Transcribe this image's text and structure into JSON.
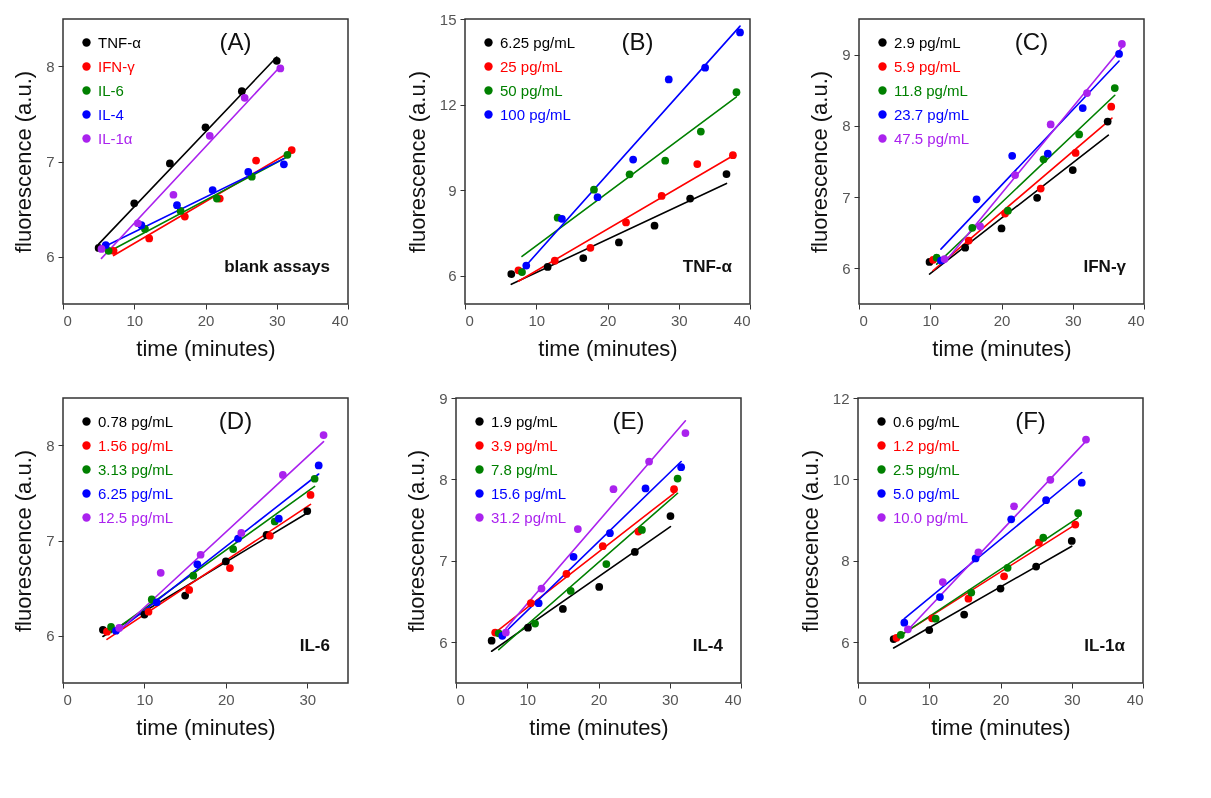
{
  "chart_data": [
    {
      "type": "scatter",
      "title": "(A)",
      "annotations": [
        "blank assays"
      ],
      "xlabel": "time (minutes)",
      "ylabel": "fluorescence (a.u.)",
      "xlim": [
        0,
        40
      ],
      "xticks": [
        0,
        10,
        20,
        30,
        40
      ],
      "ylim": [
        5.5,
        8.5
      ],
      "yticks": [
        6,
        7,
        8
      ],
      "legend": "top left",
      "series": [
        {
          "name": "TNF-α",
          "color": "#000000",
          "marker": "circle",
          "x": [
            5,
            10,
            15,
            20,
            25.1,
            30
          ],
          "values": [
            6.09,
            6.56,
            6.98,
            7.36,
            7.74,
            8.06
          ]
        },
        {
          "name": "IFN-γ",
          "color": "#ff0000",
          "marker": "circle",
          "x": [
            7.1,
            12.1,
            17.1,
            22,
            27.1,
            32.1
          ],
          "values": [
            6.06,
            6.19,
            6.42,
            6.61,
            7.01,
            7.12
          ]
        },
        {
          "name": "IL-6",
          "color": "#008000",
          "marker": "circle",
          "x": [
            6.4,
            11.5,
            16.5,
            21.6,
            26.5,
            31.5
          ],
          "values": [
            6.06,
            6.29,
            6.48,
            6.61,
            6.84,
            7.07
          ]
        },
        {
          "name": "IL-4",
          "color": "#0000ff",
          "marker": "circle",
          "x": [
            6,
            11,
            16,
            21,
            26,
            31
          ],
          "values": [
            6.12,
            6.33,
            6.54,
            6.7,
            6.89,
            6.97
          ]
        },
        {
          "name": "IL-1α",
          "color": "#aa22ee",
          "marker": "circle",
          "x": [
            5.4,
            10.5,
            15.5,
            20.6,
            25.5,
            30.5
          ],
          "values": [
            6.08,
            6.35,
            6.65,
            7.27,
            7.67,
            7.98
          ]
        },
        {
          "type": "line",
          "color": "#000000",
          "x": [
            5,
            30
          ],
          "values": [
            6.13,
            8.1
          ]
        },
        {
          "type": "line",
          "color": "#ff0000",
          "x": [
            7.1,
            32.1
          ],
          "values": [
            6.01,
            7.11
          ]
        },
        {
          "type": "line",
          "color": "#008000",
          "x": [
            6.4,
            31.5
          ],
          "values": [
            6.05,
            7.05
          ]
        },
        {
          "type": "line",
          "color": "#0000ff",
          "x": [
            6,
            31
          ],
          "values": [
            6.11,
            7.03
          ]
        },
        {
          "type": "line",
          "color": "#aa22ee",
          "x": [
            5.4,
            30.5
          ],
          "values": [
            5.98,
            8.0
          ]
        }
      ]
    },
    {
      "type": "scatter",
      "title": "(B)",
      "annotations": [
        "TNF-α"
      ],
      "xlabel": "time (minutes)",
      "ylabel": "fluorescence (a.u.)",
      "xlim": [
        0,
        40
      ],
      "xticks": [
        0,
        10,
        20,
        30,
        40
      ],
      "ylim": [
        5,
        15
      ],
      "yticks": [
        6,
        9,
        12,
        15
      ],
      "legend": "top left",
      "series": [
        {
          "name": "6.25 pg/mL",
          "color": "#000000",
          "marker": "circle",
          "x": [
            6.5,
            11.6,
            16.6,
            21.6,
            26.6,
            31.6,
            36.7
          ],
          "values": [
            6.05,
            6.3,
            6.61,
            7.16,
            7.75,
            8.7,
            9.56
          ]
        },
        {
          "name": "25 pg/mL",
          "color": "#ff0000",
          "marker": "circle",
          "x": [
            7.5,
            12.6,
            17.6,
            22.6,
            27.6,
            32.6,
            37.6
          ],
          "values": [
            6.18,
            6.52,
            6.97,
            7.86,
            8.79,
            9.91,
            10.22
          ]
        },
        {
          "name": "50 pg/mL",
          "color": "#008000",
          "marker": "circle",
          "x": [
            8,
            13,
            18.1,
            23.1,
            28.1,
            33.1,
            38.1
          ],
          "values": [
            6.12,
            8.03,
            9.01,
            9.55,
            10.03,
            11.05,
            12.43
          ]
        },
        {
          "name": "100 pg/mL",
          "color": "#0000ff",
          "marker": "circle",
          "x": [
            8.6,
            13.6,
            18.6,
            23.6,
            28.6,
            33.7,
            38.6
          ],
          "values": [
            6.35,
            7.99,
            8.75,
            10.07,
            12.88,
            13.29,
            14.53
          ]
        },
        {
          "type": "line",
          "color": "#000000",
          "x": [
            6.5,
            36.7
          ],
          "values": [
            5.69,
            9.23
          ]
        },
        {
          "type": "line",
          "color": "#ff0000",
          "x": [
            7.5,
            37.6
          ],
          "values": [
            5.8,
            10.2
          ]
        },
        {
          "type": "line",
          "color": "#008000",
          "x": [
            8,
            38.1
          ],
          "values": [
            6.67,
            12.27
          ]
        },
        {
          "type": "line",
          "color": "#0000ff",
          "x": [
            8.1,
            38.6
          ],
          "values": [
            6.22,
            14.75
          ]
        }
      ]
    },
    {
      "type": "scatter",
      "title": "(C)",
      "annotations": [
        "IFN-γ"
      ],
      "xlabel": "time (minutes)",
      "ylabel": "fluorescence (a.u.)",
      "xlim": [
        0,
        40
      ],
      "xticks": [
        0,
        10,
        20,
        30,
        40
      ],
      "ylim": [
        5.5,
        9.5
      ],
      "yticks": [
        6,
        7,
        8,
        9
      ],
      "legend": "top left",
      "series": [
        {
          "name": "2.9 pg/mL",
          "color": "#000000",
          "marker": "circle",
          "x": [
            9.9,
            14.9,
            20,
            25,
            30,
            34.9
          ],
          "values": [
            6.09,
            6.29,
            6.56,
            6.99,
            7.38,
            8.06
          ]
        },
        {
          "name": "5.9 pg/mL",
          "color": "#ff0000",
          "marker": "circle",
          "x": [
            10.4,
            15.4,
            20.5,
            25.5,
            30.4,
            35.4
          ],
          "values": [
            6.12,
            6.39,
            6.77,
            7.12,
            7.62,
            8.27
          ]
        },
        {
          "name": "11.8 pg/mL",
          "color": "#008000",
          "marker": "circle",
          "x": [
            10.9,
            15.9,
            20.9,
            25.9,
            30.9,
            35.9
          ],
          "values": [
            6.15,
            6.57,
            6.81,
            7.53,
            7.88,
            8.53
          ]
        },
        {
          "name": "23.7 pg/mL",
          "color": "#0000ff",
          "marker": "circle",
          "x": [
            11.5,
            16.5,
            21.5,
            26.5,
            31.4,
            36.5
          ],
          "values": [
            6.11,
            6.97,
            7.58,
            7.61,
            8.25,
            9.01
          ]
        },
        {
          "name": "47.5 pg/mL",
          "color": "#aa22ee",
          "marker": "circle",
          "x": [
            12,
            17,
            21.9,
            26.9,
            32,
            36.9
          ],
          "values": [
            6.13,
            6.59,
            7.31,
            8.02,
            8.46,
            9.15
          ]
        },
        {
          "type": "line",
          "color": "#000000",
          "x": [
            9.9,
            35
          ],
          "values": [
            5.92,
            7.87
          ]
        },
        {
          "type": "line",
          "color": "#ff0000",
          "x": [
            10.4,
            35.5
          ],
          "values": [
            5.97,
            8.11
          ]
        },
        {
          "type": "line",
          "color": "#008000",
          "x": [
            10.9,
            35.9
          ],
          "values": [
            6.06,
            8.43
          ]
        },
        {
          "type": "line",
          "color": "#0000ff",
          "x": [
            11.5,
            36.5
          ],
          "values": [
            6.27,
            8.91
          ]
        },
        {
          "type": "line",
          "color": "#aa22ee",
          "x": [
            12,
            36.9
          ],
          "values": [
            6.08,
            9.1
          ]
        }
      ]
    },
    {
      "type": "scatter",
      "title": "(D)",
      "annotations": [
        "IL-6"
      ],
      "xlabel": "time (minutes)",
      "ylabel": "fluorescence (a.u.)",
      "xlim": [
        0,
        35
      ],
      "xticks": [
        0,
        10,
        20,
        30
      ],
      "ylim": [
        5.5,
        8.5
      ],
      "yticks": [
        6,
        7,
        8
      ],
      "legend": "top left",
      "series": [
        {
          "name": "0.78 pg/mL",
          "color": "#000000",
          "marker": "circle",
          "x": [
            4.9,
            10,
            15,
            20,
            25,
            30
          ],
          "values": [
            6.06,
            6.22,
            6.42,
            6.78,
            7.06,
            7.31
          ]
        },
        {
          "name": "1.56 pg/mL",
          "color": "#ff0000",
          "marker": "circle",
          "x": [
            5.4,
            10.5,
            15.5,
            20.5,
            25.4,
            30.4
          ],
          "values": [
            6.04,
            6.25,
            6.48,
            6.71,
            7.05,
            7.48
          ]
        },
        {
          "name": "3.13 pg/mL",
          "color": "#008000",
          "marker": "circle",
          "x": [
            5.9,
            10.9,
            16,
            20.9,
            26,
            30.9
          ],
          "values": [
            6.09,
            6.38,
            6.63,
            6.91,
            7.2,
            7.65
          ]
        },
        {
          "name": "6.25 pg/mL",
          "color": "#0000ff",
          "marker": "circle",
          "x": [
            6.5,
            11.5,
            16.5,
            21.5,
            26.5,
            31.4
          ],
          "values": [
            6.05,
            6.35,
            6.75,
            7.02,
            7.23,
            7.79
          ]
        },
        {
          "name": "12.5 pg/mL",
          "color": "#aa22ee",
          "marker": "circle",
          "x": [
            6.9,
            12,
            16.9,
            21.9,
            27,
            32
          ],
          "values": [
            6.08,
            6.66,
            6.85,
            7.08,
            7.69,
            8.11
          ]
        },
        {
          "type": "line",
          "color": "#000000",
          "x": [
            4.9,
            30
          ],
          "values": [
            5.99,
            7.29
          ]
        },
        {
          "type": "line",
          "color": "#ff0000",
          "x": [
            5.4,
            30.4
          ],
          "values": [
            5.96,
            7.38
          ]
        },
        {
          "type": "line",
          "color": "#008000",
          "x": [
            5.9,
            30.9
          ],
          "values": [
            6.03,
            7.57
          ]
        },
        {
          "type": "line",
          "color": "#0000ff",
          "x": [
            6.5,
            31.4
          ],
          "values": [
            6.03,
            7.7
          ]
        },
        {
          "type": "line",
          "color": "#aa22ee",
          "x": [
            6.9,
            32
          ],
          "values": [
            6.05,
            8.04
          ]
        }
      ]
    },
    {
      "type": "scatter",
      "title": "(E)",
      "annotations": [
        "IL-4"
      ],
      "xlabel": "time (minutes)",
      "ylabel": "fluorescence (a.u.)",
      "xlim": [
        0,
        40
      ],
      "xticks": [
        0,
        10,
        20,
        30,
        40
      ],
      "ylim": [
        5.5,
        9
      ],
      "yticks": [
        6,
        7,
        8,
        9
      ],
      "legend": "top left",
      "series": [
        {
          "name": "1.9 pg/mL",
          "color": "#000000",
          "marker": "circle",
          "x": [
            5,
            10.1,
            15,
            20.1,
            25.1,
            30.1
          ],
          "values": [
            6.02,
            6.18,
            6.41,
            6.68,
            7.11,
            7.55
          ]
        },
        {
          "name": "3.9 pg/mL",
          "color": "#ff0000",
          "marker": "circle",
          "x": [
            5.5,
            10.5,
            15.5,
            20.6,
            25.6,
            30.6
          ],
          "values": [
            6.12,
            6.48,
            6.84,
            7.18,
            7.36,
            7.88
          ]
        },
        {
          "name": "7.8 pg/mL",
          "color": "#008000",
          "marker": "circle",
          "x": [
            6,
            11.1,
            16.1,
            21.1,
            26.1,
            31.1
          ],
          "values": [
            6.11,
            6.23,
            6.63,
            6.96,
            7.38,
            8.01
          ]
        },
        {
          "name": "15.6 pg/mL",
          "color": "#0000ff",
          "marker": "circle",
          "x": [
            6.5,
            11.6,
            16.5,
            21.6,
            26.6,
            31.6
          ],
          "values": [
            6.08,
            6.48,
            7.05,
            7.34,
            7.89,
            8.15
          ]
        },
        {
          "name": "31.2 pg/mL",
          "color": "#aa22ee",
          "marker": "circle",
          "x": [
            7,
            12,
            17.1,
            22.1,
            27.1,
            32.2
          ],
          "values": [
            6.12,
            6.66,
            7.39,
            7.88,
            8.22,
            8.57
          ]
        },
        {
          "type": "line",
          "color": "#000000",
          "x": [
            5,
            30.1
          ],
          "values": [
            5.89,
            7.42
          ]
        },
        {
          "type": "line",
          "color": "#ff0000",
          "x": [
            5.5,
            30.6
          ],
          "values": [
            6.12,
            7.83
          ]
        },
        {
          "type": "line",
          "color": "#008000",
          "x": [
            6,
            31.1
          ],
          "values": [
            5.91,
            7.83
          ]
        },
        {
          "type": "line",
          "color": "#0000ff",
          "x": [
            6.5,
            31.6
          ],
          "values": [
            6.09,
            8.22
          ]
        },
        {
          "type": "line",
          "color": "#aa22ee",
          "x": [
            7,
            32.2
          ],
          "values": [
            6.17,
            8.72
          ]
        }
      ]
    },
    {
      "type": "scatter",
      "title": "(F)",
      "annotations": [
        "IL-1α"
      ],
      "xlabel": "time (minutes)",
      "ylabel": "fluorescence (a.u.)",
      "xlim": [
        0,
        40
      ],
      "xticks": [
        0,
        10,
        20,
        30,
        40
      ],
      "ylim": [
        5,
        12
      ],
      "yticks": [
        6,
        8,
        10,
        12
      ],
      "legend": "top left",
      "series": [
        {
          "name": "0.6 pg/mL",
          "color": "#000000",
          "marker": "circle",
          "x": [
            5,
            10,
            14.9,
            20,
            25,
            30
          ],
          "values": [
            6.08,
            6.3,
            6.68,
            7.32,
            7.86,
            8.49
          ]
        },
        {
          "name": "1.2 pg/mL",
          "color": "#ff0000",
          "marker": "circle",
          "x": [
            5.4,
            10.4,
            15.5,
            20.5,
            25.4,
            30.5
          ],
          "values": [
            6.11,
            6.59,
            7.07,
            7.62,
            8.45,
            8.89
          ]
        },
        {
          "name": "2.5 pg/mL",
          "color": "#008000",
          "marker": "circle",
          "x": [
            6,
            10.9,
            15.9,
            21,
            26,
            30.9
          ],
          "values": [
            6.18,
            6.58,
            7.22,
            7.83,
            8.57,
            9.17
          ]
        },
        {
          "name": "5.0 pg/mL",
          "color": "#0000ff",
          "marker": "circle",
          "x": [
            6.5,
            11.5,
            16.5,
            21.5,
            26.4,
            31.4
          ],
          "values": [
            6.48,
            7.11,
            8.06,
            9.02,
            9.49,
            9.92
          ]
        },
        {
          "name": "10.0 pg/mL",
          "color": "#aa22ee",
          "marker": "circle",
          "x": [
            7,
            11.9,
            16.9,
            21.9,
            27,
            32
          ],
          "values": [
            6.32,
            7.48,
            8.21,
            9.34,
            9.99,
            10.98
          ]
        },
        {
          "type": "line",
          "color": "#000000",
          "x": [
            5,
            30
          ],
          "values": [
            5.86,
            8.36
          ]
        },
        {
          "type": "line",
          "color": "#ff0000",
          "x": [
            5.4,
            30.5
          ],
          "values": [
            6.11,
            8.89
          ]
        },
        {
          "type": "line",
          "color": "#008000",
          "x": [
            6,
            30.9
          ],
          "values": [
            6.17,
            9.06
          ]
        },
        {
          "type": "line",
          "color": "#0000ff",
          "x": [
            6.5,
            31.4
          ],
          "values": [
            6.58,
            10.17
          ]
        },
        {
          "type": "line",
          "color": "#aa22ee",
          "x": [
            7,
            32
          ],
          "values": [
            6.3,
            10.94
          ]
        }
      ]
    }
  ]
}
